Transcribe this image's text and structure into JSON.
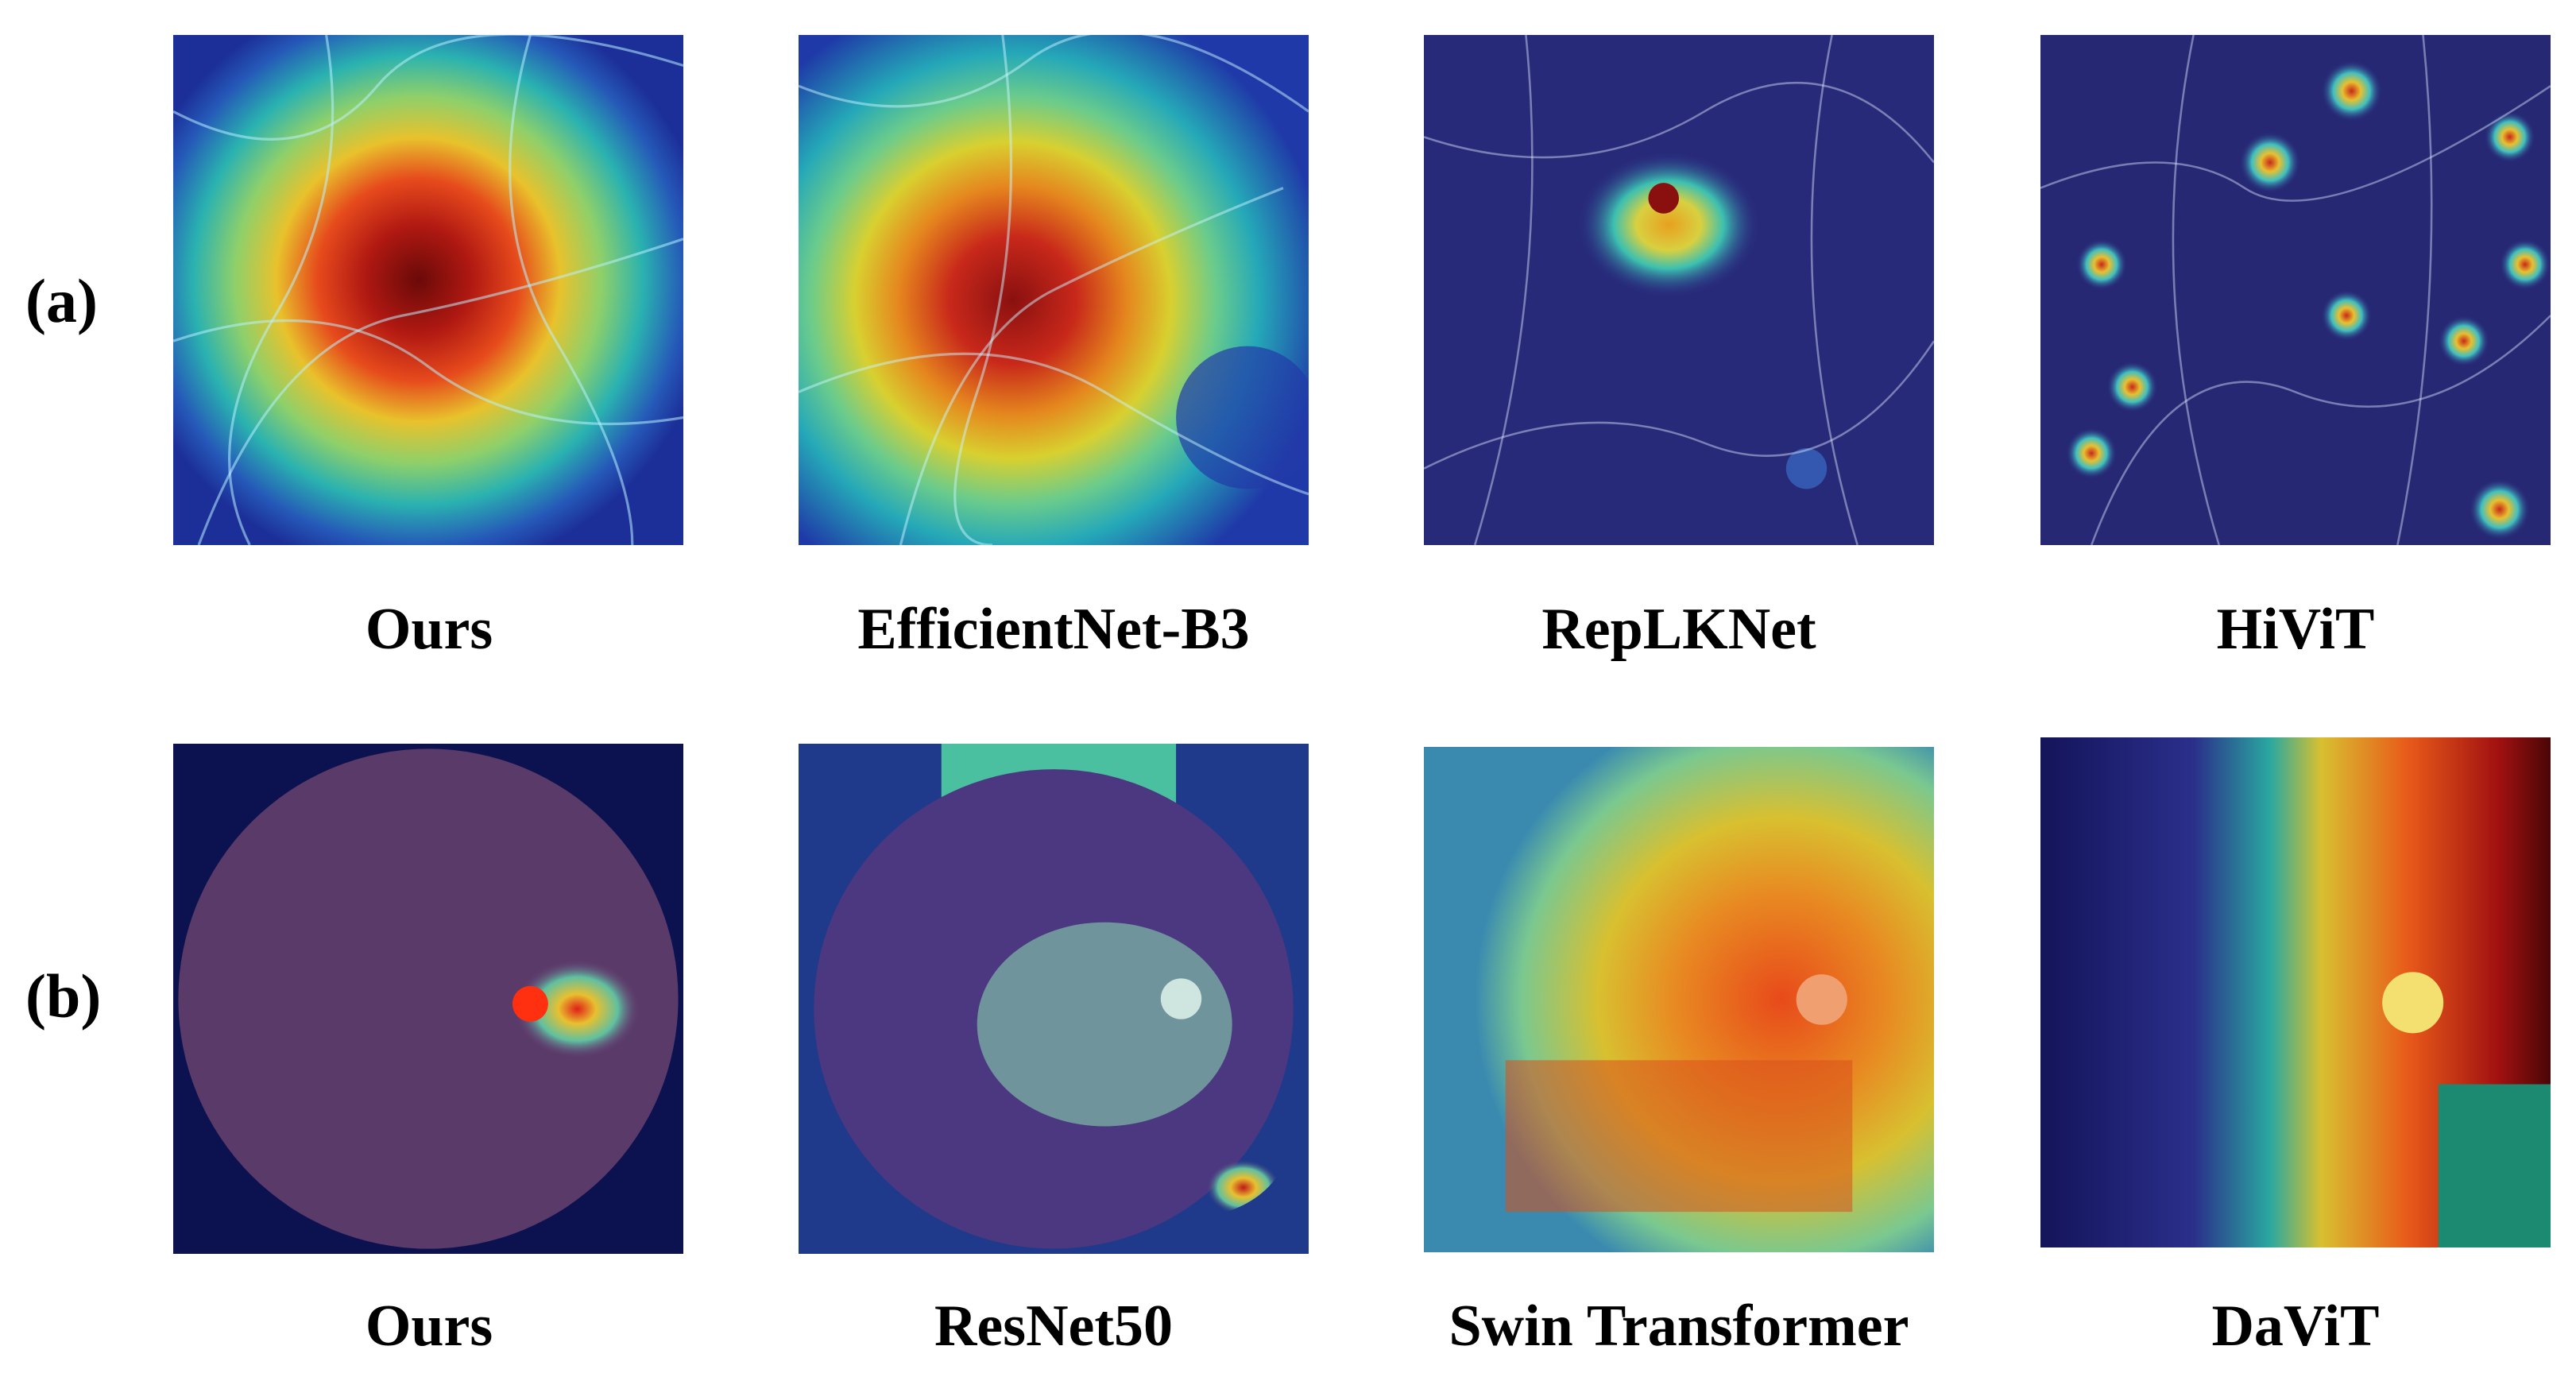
{
  "rows": [
    {
      "label": "(a)",
      "panels": [
        {
          "caption": "Ours"
        },
        {
          "caption": "EfficientNet-B3"
        },
        {
          "caption": "RepLKNet"
        },
        {
          "caption": "HiViT"
        }
      ]
    },
    {
      "label": "(b)",
      "panels": [
        {
          "caption": "Ours"
        },
        {
          "caption": "ResNet50"
        },
        {
          "caption": "Swin Transformer"
        },
        {
          "caption": "DaViT"
        }
      ]
    }
  ]
}
